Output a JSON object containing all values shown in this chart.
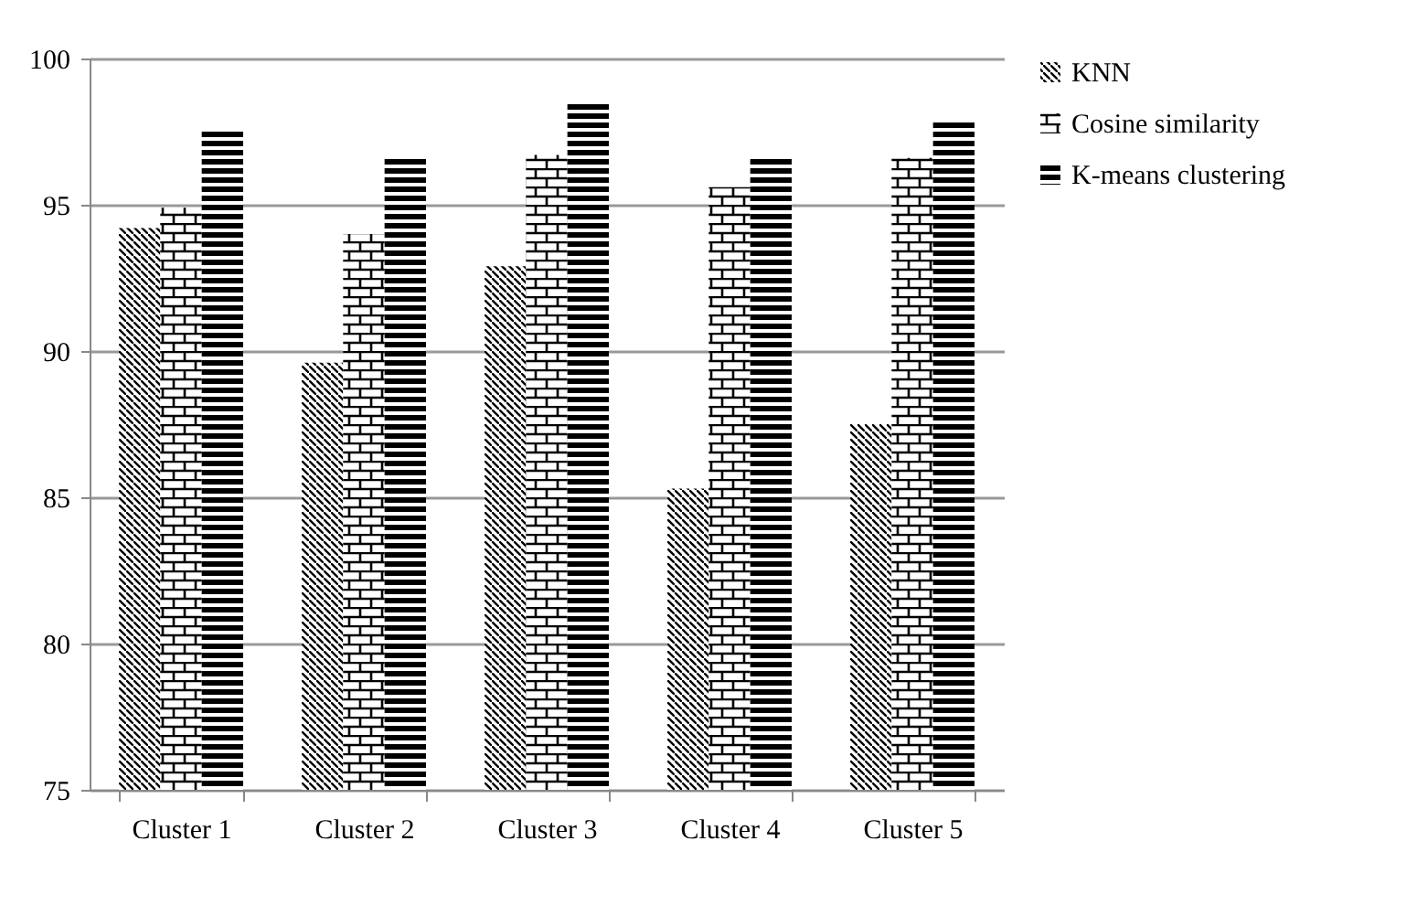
{
  "chart_data": {
    "type": "bar",
    "categories": [
      "Cluster 1",
      "Cluster 2",
      "Cluster 3",
      "Cluster 4",
      "Cluster 5"
    ],
    "series": [
      {
        "name": "KNN",
        "color": "#000000",
        "values": [
          94.2,
          89.6,
          92.9,
          85.3,
          87.5
        ]
      },
      {
        "name": "Cosine similarity",
        "color": "#000000",
        "values": [
          94.9,
          94.0,
          96.7,
          95.6,
          96.6
        ]
      },
      {
        "name": "K-means clustering",
        "color": "#000000",
        "values": [
          97.6,
          96.6,
          98.5,
          96.6,
          97.9
        ]
      }
    ],
    "ylim": [
      75,
      100
    ],
    "yticks": [
      75,
      80,
      85,
      90,
      95,
      100
    ],
    "grid": "y",
    "legend": "right"
  }
}
